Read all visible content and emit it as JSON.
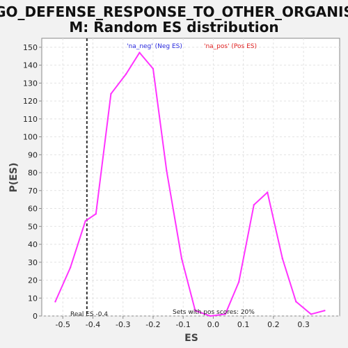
{
  "chart_data": {
    "type": "line",
    "title_line1": "GO_DEFENSE_RESPONSE_TO_OTHER_ORGANIS",
    "title_line2": "M: Random ES distribution",
    "xlabel": "ES",
    "ylabel": "P(ES)",
    "xlim": [
      -0.57,
      0.42
    ],
    "ylim": [
      0,
      155
    ],
    "x_ticks": [
      -0.5,
      -0.4,
      -0.3,
      -0.2,
      -0.1,
      0.0,
      0.1,
      0.2,
      0.3
    ],
    "x_tick_labels": [
      "-0.5",
      "-0.4",
      "-0.3",
      "-0.2",
      "-0.1",
      "0.0",
      "0.1",
      "0.2",
      "0.3"
    ],
    "y_ticks": [
      0,
      10,
      20,
      30,
      40,
      50,
      60,
      70,
      80,
      90,
      100,
      110,
      120,
      130,
      140,
      150
    ],
    "y_tick_labels": [
      "0",
      "10",
      "20",
      "30",
      "40",
      "50",
      "60",
      "70",
      "80",
      "90",
      "100",
      "110",
      "120",
      "130",
      "140",
      "150"
    ],
    "grid": true,
    "series": [
      {
        "name": "Random ES distribution",
        "color": "#ff33ff",
        "x": [
          -0.525,
          -0.475,
          -0.425,
          -0.39,
          -0.34,
          -0.29,
          -0.245,
          -0.2,
          -0.155,
          -0.105,
          -0.06,
          -0.01,
          0.04,
          0.085,
          0.135,
          0.18,
          0.23,
          0.275,
          0.325,
          0.37
        ],
        "y": [
          8,
          27,
          53,
          57,
          124,
          135,
          147,
          138,
          81,
          32,
          3,
          0,
          1,
          19,
          62,
          69,
          32,
          8,
          1,
          3
        ]
      }
    ],
    "real_es": -0.42,
    "real_es_label": "Real ES -0.4",
    "legend_neg": "'na_neg' (Neg ES)",
    "legend_pos": "'na_pos' (Pos ES)",
    "annotation": "Sets with pos scores: 20%"
  },
  "colors": {
    "background": "#f2f2f2",
    "plot_bg": "#ffffff",
    "grid": "#e2e2e2",
    "axis": "#888888",
    "marker_line": "#333333"
  }
}
